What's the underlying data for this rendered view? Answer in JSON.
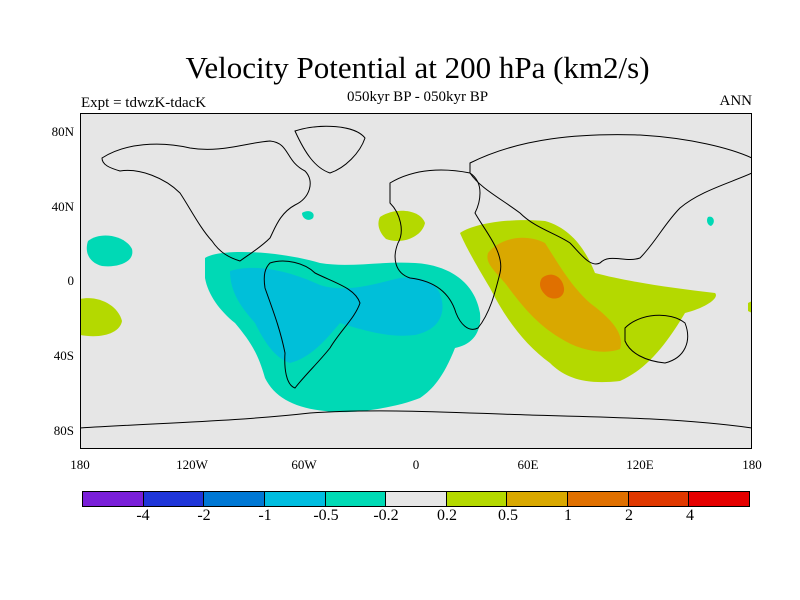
{
  "header": {
    "title": "Velocity Potential at 200 hPa (km2/s)",
    "subtitle": "050kyr BP - 050kyr BP",
    "left_label": "Expt = tdwzK-tdacK",
    "right_label": "ANN"
  },
  "map": {
    "y_ticks": [
      "80N",
      "40N",
      "0",
      "40S",
      "80S"
    ],
    "x_ticks": [
      "180",
      "120W",
      "60W",
      "0",
      "60E",
      "120E",
      "180"
    ],
    "field_colors": {
      "background": "#e6e6e6",
      "neg_light": "#00d9b5",
      "neg_mid": "#00bfd9",
      "pos_light": "#b4d900",
      "pos_mid": "#d9a800",
      "pos_strong": "#e07000"
    }
  },
  "colorbar": {
    "colors": [
      "#7a1fd9",
      "#1f36d9",
      "#0078d4",
      "#00bde0",
      "#00dab5",
      "#e6e6e6",
      "#b4d900",
      "#d9a800",
      "#e07000",
      "#e03800",
      "#e50000"
    ],
    "labels": [
      "-4",
      "-2",
      "-1",
      "-0.5",
      "-0.2",
      "0.2",
      "0.5",
      "1",
      "2",
      "4"
    ]
  }
}
